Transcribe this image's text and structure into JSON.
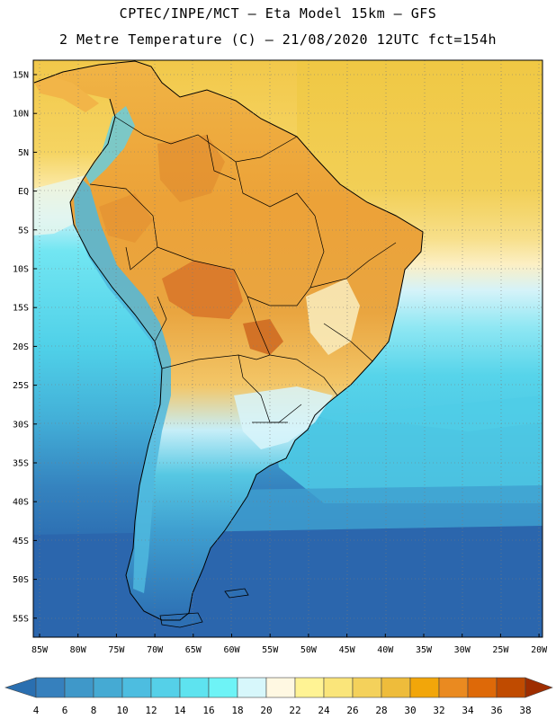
{
  "header": {
    "line1": "CPTEC/INPE/MCT –  Eta Model 15km – GFS",
    "line2": "2 Metre Temperature (C) – 21/08/2020 12UTC fct=154h"
  },
  "map": {
    "lat_labels": [
      "15N",
      "10N",
      "5N",
      "EQ",
      "5S",
      "10S",
      "15S",
      "20S",
      "25S",
      "30S",
      "35S",
      "40S",
      "45S",
      "50S",
      "55S"
    ],
    "lon_labels": [
      "85W",
      "80W",
      "75W",
      "70W",
      "65W",
      "60W",
      "55W",
      "50W",
      "45W",
      "40W",
      "35W",
      "30W",
      "25W",
      "20W"
    ]
  },
  "colorbar": {
    "labels": [
      "4",
      "6",
      "8",
      "10",
      "12",
      "14",
      "16",
      "18",
      "20",
      "22",
      "24",
      "26",
      "28",
      "30",
      "32",
      "34",
      "36",
      "38"
    ],
    "colors": [
      "#2a6fb0",
      "#3680bd",
      "#3f98c9",
      "#45aad3",
      "#4dbde0",
      "#55d0e8",
      "#5ee3ef",
      "#6ef3f6",
      "#d7f7fb",
      "#fff8e2",
      "#fff394",
      "#fae57a",
      "#f4d15b",
      "#eebc3b",
      "#f2a60a",
      "#ea8a20",
      "#de6908",
      "#c04b00",
      "#9e2d00"
    ]
  },
  "palette": {
    "ocean_deep": "#2b66ad",
    "ocean_mid": "#3b8cc4",
    "ocean_cyan": "#4fd2ea",
    "ocean_light": "#c6f2f8",
    "atl_north": "#f1cd48",
    "atl_pale": "#fbebb0",
    "land_orange": "#eba53a",
    "land_hot": "#db7f26",
    "land_hotter": "#c9691c",
    "coast": "#000000"
  }
}
